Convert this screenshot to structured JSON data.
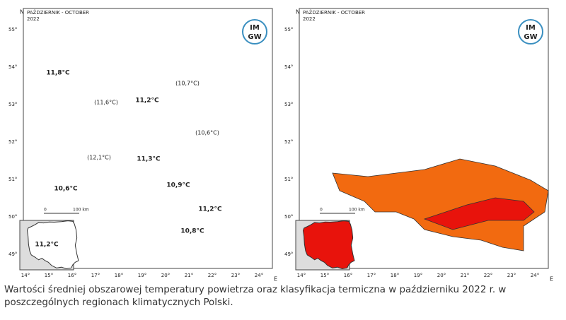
{
  "maps": [
    {
      "header": {
        "title": "PAŹDZIERNIK - OCTOBER",
        "year": "2022"
      },
      "lat_labels": [
        "55°",
        "54°",
        "53°",
        "52°",
        "51°",
        "50°",
        "49°"
      ],
      "lon_labels": [
        "14°",
        "15°",
        "16°",
        "17°",
        "18°",
        "19°",
        "20°",
        "21°",
        "22°",
        "23°",
        "24°"
      ],
      "north": "N",
      "east": "E",
      "scale": {
        "start": "0",
        "end": "100 km"
      },
      "logo": {
        "top": "IM",
        "bottom": "GW"
      },
      "regions": [
        "11,8°C",
        "(10,7°C)",
        "(11,6°C)",
        "11,2°C",
        "(10,6°C)",
        "(12,1°C)",
        "11,3°C",
        "10,6°C",
        "10,9°C",
        "11,2°C",
        "10,8°C"
      ],
      "inset_label": "11,2°C"
    },
    {
      "header": {
        "title": "PAŹDZIERNIK - OCTOBER",
        "year": "2022"
      },
      "lat_labels": [
        "55°",
        "54°",
        "53°",
        "52°",
        "51°",
        "50°",
        "49°"
      ],
      "lon_labels": [
        "14°",
        "15°",
        "16°",
        "17°",
        "18°",
        "19°",
        "20°",
        "21°",
        "22°",
        "23°",
        "24°"
      ],
      "north": "N",
      "east": "E",
      "scale": {
        "start": "0",
        "end": "100 km"
      },
      "logo": {
        "top": "IM",
        "bottom": "GW"
      }
    }
  ],
  "caption": "Wartości średniej obszarowej temperatury powietrza oraz klasyfikacja termiczna w październiku 2022 r. w poszczególnych regionach klimatycznych Polski."
}
